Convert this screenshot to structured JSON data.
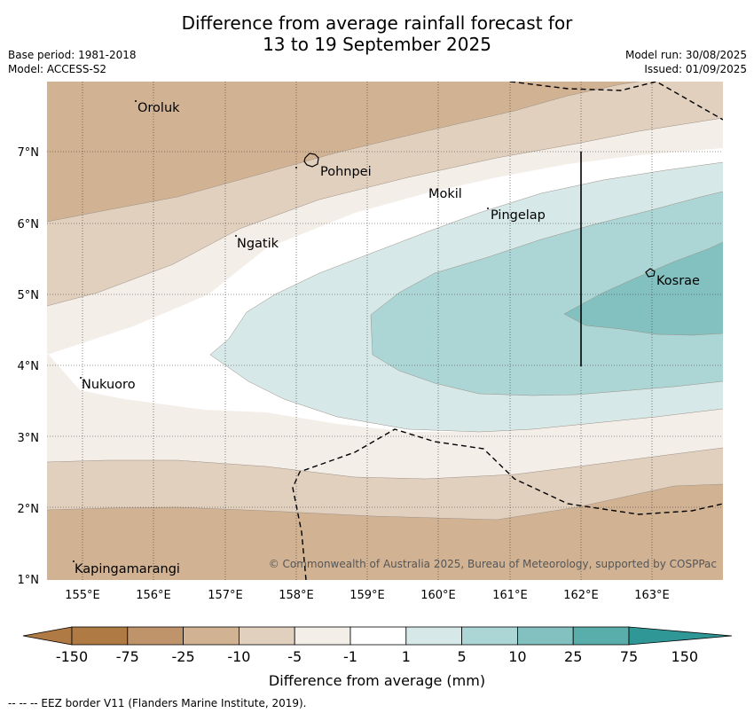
{
  "header": {
    "title_line1": "Difference from average rainfall forecast for",
    "title_line2": "13 to 19 September 2025",
    "base_period": "Base period: 1981-2018",
    "model": "Model: ACCESS-S2",
    "model_run": "Model run: 30/08/2025",
    "issued": "Issued: 01/09/2025"
  },
  "map": {
    "lon_ticks": [
      "155°E",
      "156°E",
      "157°E",
      "158°E",
      "159°E",
      "160°E",
      "161°E",
      "162°E",
      "163°E"
    ],
    "lat_ticks": [
      "1°N",
      "2°N",
      "3°N",
      "4°N",
      "5°N",
      "6°N",
      "7°N"
    ],
    "places": [
      "Oroluk",
      "Pohnpei",
      "Mokil",
      "Pingelap",
      "Ngatik",
      "Kosrae",
      "Nukuoro",
      "Kapingamarangi"
    ],
    "copyright": "© Commonwealth of Australia 2025, Bureau of Meteorology, supported by COSPPac"
  },
  "colorbar": {
    "labels": [
      "-150",
      "-75",
      "-25",
      "-10",
      "-5",
      "-1",
      "1",
      "5",
      "10",
      "25",
      "75",
      "150"
    ],
    "colors": [
      "#b07a45",
      "#c0946a",
      "#d1b394",
      "#e2d0be",
      "#f4eee8",
      "#ffffff",
      "#d6e9e8",
      "#acd6d5",
      "#82c1c0",
      "#59adab",
      "#2f9896"
    ],
    "title": "Difference from average (mm)"
  },
  "footnote": "--  --  -- EEZ border V11 (Flanders Marine Institute, 2019)."
}
